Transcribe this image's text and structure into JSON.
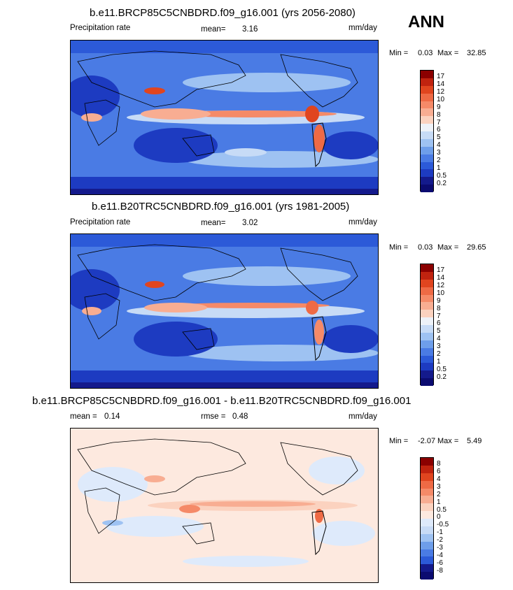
{
  "season": "ANN",
  "panels": [
    {
      "title": "b.e11.BRCP85C5CNBDRD.f09_g16.001 (yrs 2056-2080)",
      "variable": "Precipitation rate",
      "stat_label": "mean=",
      "stat_value": "3.16",
      "units": "mm/day",
      "min_label": "Min =",
      "min_value": "0.03",
      "max_label": "Max =",
      "max_value": "32.85",
      "levels": [
        "17",
        "14",
        "12",
        "10",
        "9",
        "8",
        "7",
        "6",
        "5",
        "4",
        "3",
        "2",
        "1",
        "0.5",
        "0.2"
      ]
    },
    {
      "title": "b.e11.B20TRC5CNBDRD.f09_g16.001 (yrs 1981-2005)",
      "variable": "Precipitation rate",
      "stat_label": "mean=",
      "stat_value": "3.02",
      "units": "mm/day",
      "min_label": "Min =",
      "min_value": "0.03",
      "max_label": "Max =",
      "max_value": "29.65",
      "levels": [
        "17",
        "14",
        "12",
        "10",
        "9",
        "8",
        "7",
        "6",
        "5",
        "4",
        "3",
        "2",
        "1",
        "0.5",
        "0.2"
      ]
    },
    {
      "title": "b.e11.BRCP85C5CNBDRD.f09_g16.001 - b.e11.B20TRC5CNBDRD.f09_g16.001",
      "stat_label": "mean =",
      "stat_value": "0.14",
      "stat2_label": "rmse =",
      "stat2_value": "0.48",
      "units": "mm/day",
      "min_label": "Min =",
      "min_value": "-2.07",
      "max_label": "Max =",
      "max_value": "5.49",
      "levels": [
        "8",
        "6",
        "4",
        "3",
        "2",
        "1",
        "0.5",
        "0",
        "-0.5",
        "-1",
        "-2",
        "-3",
        "-4",
        "-6",
        "-8"
      ]
    }
  ],
  "colors": {
    "abs_scale": [
      "#8b0000",
      "#c0230f",
      "#e0451f",
      "#ee6a45",
      "#f58a68",
      "#f8ad92",
      "#fbd2bf",
      "#eef2f8",
      "#c7dbf6",
      "#9ec2f2",
      "#6e9eea",
      "#4a7be4",
      "#2c5ad8",
      "#1d3bc1",
      "#141a8c",
      "#0b0b70"
    ],
    "diff_scale": [
      "#8b0000",
      "#c0230f",
      "#e0451f",
      "#ee6a45",
      "#f58a68",
      "#f8ad92",
      "#fbd2bf",
      "#fde9df",
      "#deeafb",
      "#c7dbf6",
      "#9ec2f2",
      "#6e9eea",
      "#4a7be4",
      "#2c5ad8",
      "#141a8c",
      "#0b0b70"
    ]
  }
}
